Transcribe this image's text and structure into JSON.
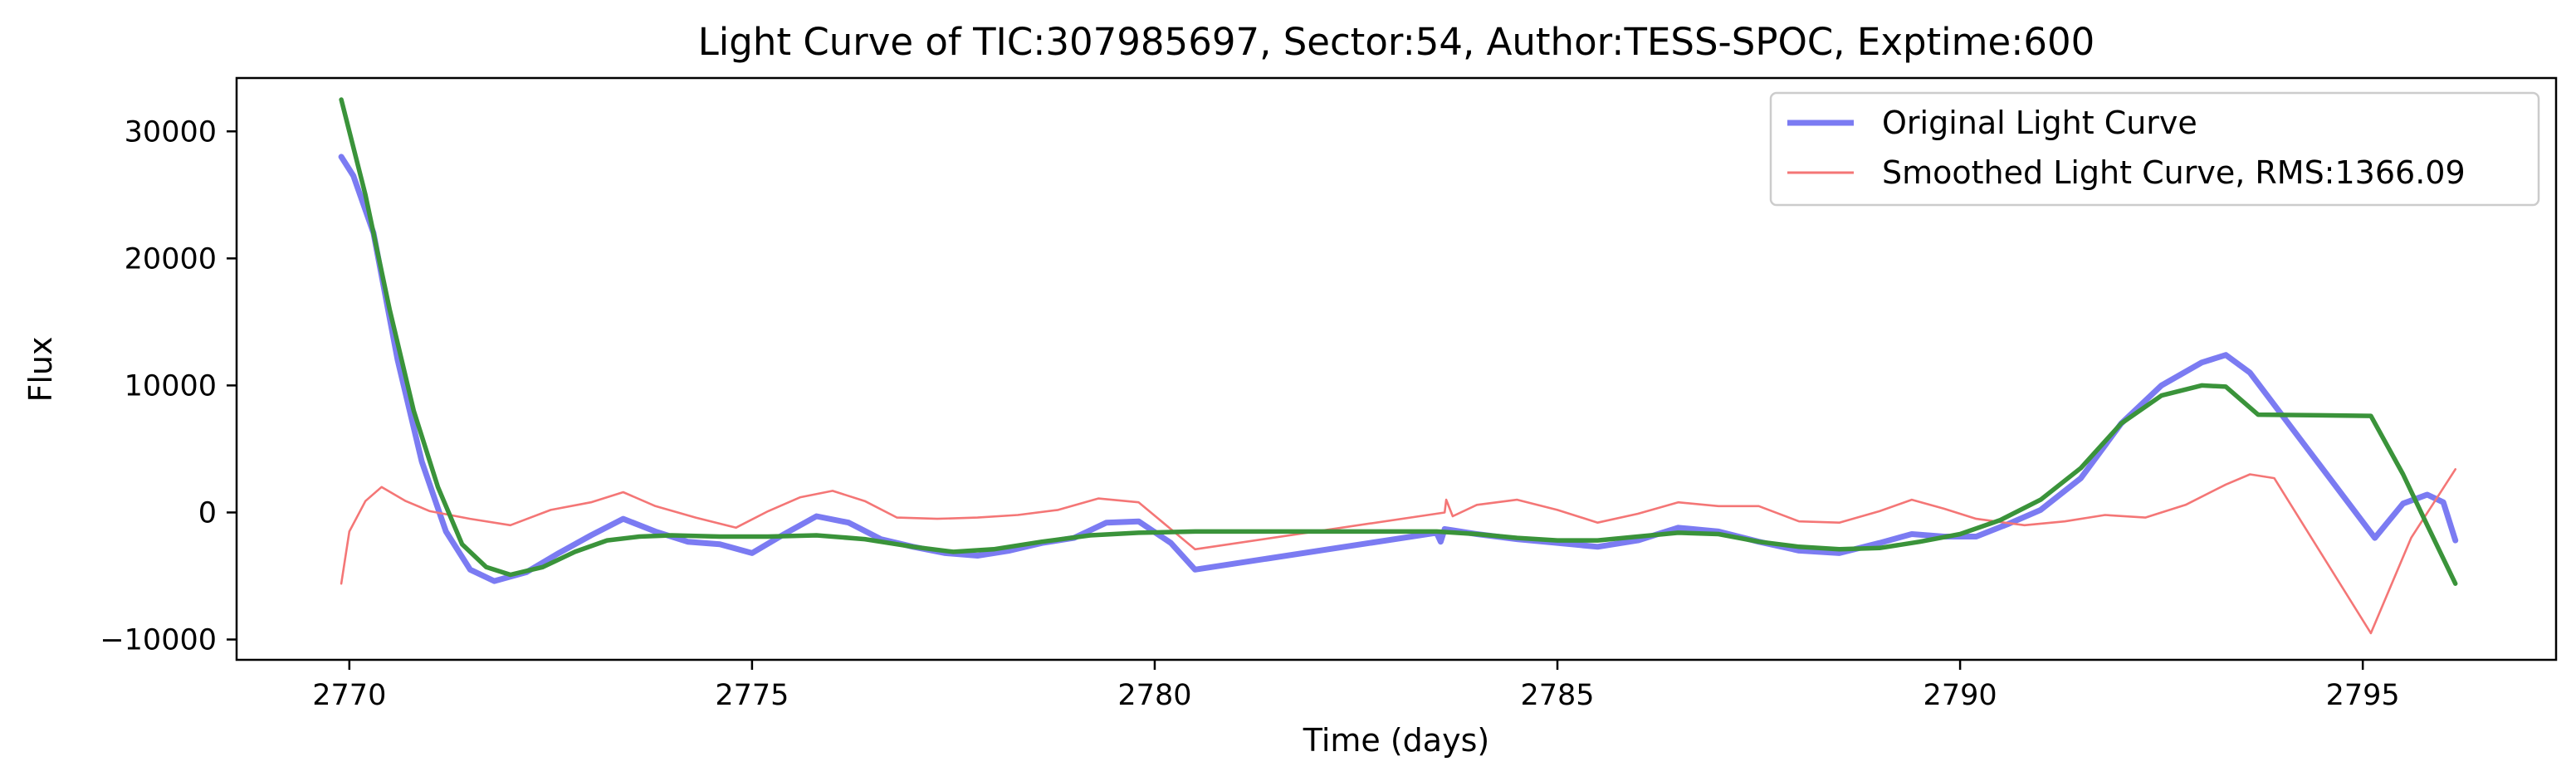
{
  "chart_data": {
    "type": "line",
    "title": "Light Curve of TIC:307985697, Sector:54, Author:TESS-SPOC, Exptime:600",
    "xlabel": "Time (days)",
    "ylabel": "Flux",
    "xlim": [
      2768.6,
      2797.4
    ],
    "ylim": [
      -11600,
      34200
    ],
    "xticks": [
      2770,
      2775,
      2780,
      2785,
      2790,
      2795
    ],
    "yticks": [
      -10000,
      0,
      10000,
      20000,
      30000
    ],
    "grid": false,
    "legend_position": "top-right",
    "series": [
      {
        "name": "Original Light Curve",
        "color": "#7b7bf2",
        "points": [
          [
            2769.9,
            28000
          ],
          [
            2770.05,
            26500
          ],
          [
            2770.3,
            22000
          ],
          [
            2770.6,
            12000
          ],
          [
            2770.9,
            4000
          ],
          [
            2771.2,
            -1500
          ],
          [
            2771.5,
            -4500
          ],
          [
            2771.8,
            -5400
          ],
          [
            2772.2,
            -4700
          ],
          [
            2772.6,
            -3200
          ],
          [
            2773.0,
            -1800
          ],
          [
            2773.4,
            -500
          ],
          [
            2773.8,
            -1500
          ],
          [
            2774.2,
            -2300
          ],
          [
            2774.6,
            -2500
          ],
          [
            2775.0,
            -3200
          ],
          [
            2775.4,
            -1700
          ],
          [
            2775.8,
            -300
          ],
          [
            2776.2,
            -800
          ],
          [
            2776.6,
            -2100
          ],
          [
            2777.0,
            -2700
          ],
          [
            2777.4,
            -3200
          ],
          [
            2777.8,
            -3400
          ],
          [
            2778.2,
            -3000
          ],
          [
            2778.6,
            -2400
          ],
          [
            2779.0,
            -2000
          ],
          [
            2779.4,
            -800
          ],
          [
            2779.8,
            -700
          ],
          [
            2780.2,
            -2400
          ],
          [
            2780.5,
            -4500
          ],
          [
            2783.5,
            -1600
          ],
          [
            2783.55,
            -2300
          ],
          [
            2783.6,
            -1300
          ],
          [
            2784.0,
            -1700
          ],
          [
            2784.5,
            -2100
          ],
          [
            2785.0,
            -2400
          ],
          [
            2785.5,
            -2700
          ],
          [
            2786.0,
            -2200
          ],
          [
            2786.5,
            -1200
          ],
          [
            2787.0,
            -1500
          ],
          [
            2787.5,
            -2300
          ],
          [
            2788.0,
            -3000
          ],
          [
            2788.5,
            -3200
          ],
          [
            2789.0,
            -2400
          ],
          [
            2789.4,
            -1700
          ],
          [
            2789.8,
            -1900
          ],
          [
            2790.2,
            -1900
          ],
          [
            2790.6,
            -900
          ],
          [
            2791.0,
            200
          ],
          [
            2791.5,
            2700
          ],
          [
            2792.0,
            7000
          ],
          [
            2792.5,
            10000
          ],
          [
            2793.0,
            11800
          ],
          [
            2793.3,
            12400
          ],
          [
            2793.6,
            11000
          ],
          [
            2795.15,
            -2000
          ],
          [
            2795.5,
            700
          ],
          [
            2795.8,
            1400
          ],
          [
            2796.0,
            800
          ],
          [
            2796.15,
            -2200
          ]
        ]
      },
      {
        "name": "Smoothed Light Curve, RMS:1366.09",
        "color": "#f47676",
        "points": [
          [
            2769.9,
            -5600
          ],
          [
            2770.0,
            -1500
          ],
          [
            2770.2,
            900
          ],
          [
            2770.4,
            2000
          ],
          [
            2770.7,
            900
          ],
          [
            2771.0,
            100
          ],
          [
            2771.5,
            -500
          ],
          [
            2772.0,
            -1000
          ],
          [
            2772.5,
            200
          ],
          [
            2773.0,
            800
          ],
          [
            2773.4,
            1600
          ],
          [
            2773.8,
            500
          ],
          [
            2774.3,
            -400
          ],
          [
            2774.8,
            -1200
          ],
          [
            2775.2,
            100
          ],
          [
            2775.6,
            1200
          ],
          [
            2776.0,
            1700
          ],
          [
            2776.4,
            900
          ],
          [
            2776.8,
            -400
          ],
          [
            2777.3,
            -500
          ],
          [
            2777.8,
            -400
          ],
          [
            2778.3,
            -200
          ],
          [
            2778.8,
            200
          ],
          [
            2779.3,
            1100
          ],
          [
            2779.8,
            800
          ],
          [
            2780.5,
            -2900
          ],
          [
            2783.6,
            0
          ],
          [
            2783.62,
            1000
          ],
          [
            2783.7,
            -300
          ],
          [
            2784.0,
            600
          ],
          [
            2784.5,
            1000
          ],
          [
            2785.0,
            200
          ],
          [
            2785.5,
            -800
          ],
          [
            2786.0,
            -100
          ],
          [
            2786.5,
            800
          ],
          [
            2787.0,
            500
          ],
          [
            2787.5,
            500
          ],
          [
            2788.0,
            -700
          ],
          [
            2788.5,
            -800
          ],
          [
            2789.0,
            100
          ],
          [
            2789.4,
            1000
          ],
          [
            2789.8,
            300
          ],
          [
            2790.2,
            -500
          ],
          [
            2790.8,
            -1000
          ],
          [
            2791.3,
            -700
          ],
          [
            2791.8,
            -200
          ],
          [
            2792.3,
            -400
          ],
          [
            2792.8,
            600
          ],
          [
            2793.3,
            2200
          ],
          [
            2793.6,
            3000
          ],
          [
            2793.9,
            2700
          ],
          [
            2795.1,
            -9500
          ],
          [
            2795.6,
            -2000
          ],
          [
            2796.15,
            3400
          ]
        ]
      },
      {
        "name": "",
        "color": "#3a933a",
        "points": [
          [
            2769.9,
            32500
          ],
          [
            2770.2,
            25000
          ],
          [
            2770.5,
            16000
          ],
          [
            2770.8,
            8000
          ],
          [
            2771.1,
            2000
          ],
          [
            2771.4,
            -2500
          ],
          [
            2771.7,
            -4300
          ],
          [
            2772.0,
            -4900
          ],
          [
            2772.4,
            -4300
          ],
          [
            2772.8,
            -3100
          ],
          [
            2773.2,
            -2200
          ],
          [
            2773.6,
            -1900
          ],
          [
            2774.0,
            -1800
          ],
          [
            2774.6,
            -1900
          ],
          [
            2775.2,
            -1900
          ],
          [
            2775.8,
            -1800
          ],
          [
            2776.4,
            -2100
          ],
          [
            2777.0,
            -2700
          ],
          [
            2777.5,
            -3100
          ],
          [
            2778.0,
            -2900
          ],
          [
            2778.6,
            -2300
          ],
          [
            2779.2,
            -1800
          ],
          [
            2779.8,
            -1600
          ],
          [
            2780.5,
            -1500
          ],
          [
            2783.5,
            -1500
          ],
          [
            2784.0,
            -1700
          ],
          [
            2784.5,
            -2000
          ],
          [
            2785.0,
            -2200
          ],
          [
            2785.5,
            -2200
          ],
          [
            2786.0,
            -1900
          ],
          [
            2786.5,
            -1600
          ],
          [
            2787.0,
            -1700
          ],
          [
            2787.5,
            -2300
          ],
          [
            2788.0,
            -2700
          ],
          [
            2788.5,
            -2900
          ],
          [
            2789.0,
            -2800
          ],
          [
            2789.5,
            -2300
          ],
          [
            2790.0,
            -1700
          ],
          [
            2790.5,
            -600
          ],
          [
            2791.0,
            1000
          ],
          [
            2791.5,
            3500
          ],
          [
            2792.0,
            7000
          ],
          [
            2792.5,
            9200
          ],
          [
            2793.0,
            10000
          ],
          [
            2793.3,
            9900
          ],
          [
            2793.7,
            7700
          ],
          [
            2795.1,
            7600
          ],
          [
            2795.5,
            3000
          ],
          [
            2795.8,
            -1000
          ],
          [
            2796.15,
            -5600
          ]
        ]
      }
    ]
  }
}
